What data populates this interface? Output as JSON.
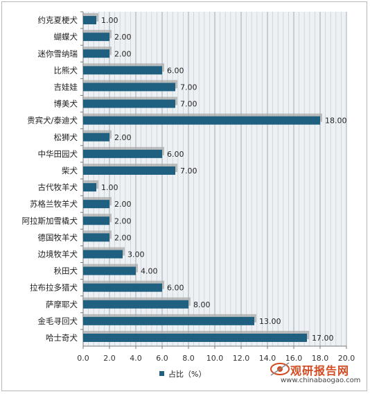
{
  "chart_data": {
    "type": "bar",
    "orientation": "horizontal",
    "categories": [
      "约克夏梗犬",
      "蝴蝶犬",
      "迷你雪纳瑞",
      "比熊犬",
      "吉娃娃",
      "博美犬",
      "贵宾犬/泰迪犬",
      "松狮犬",
      "中华田园犬",
      "柴犬",
      "古代牧羊犬",
      "苏格兰牧羊犬",
      "阿拉斯加雪橇犬",
      "德国牧羊犬",
      "边境牧羊犬",
      "秋田犬",
      "拉布拉多猎犬",
      "萨摩耶犬",
      "金毛寻回犬",
      "哈士奇犬"
    ],
    "series": [
      {
        "name": "占比（%）",
        "values": [
          1.0,
          2.0,
          2.0,
          6.0,
          7.0,
          7.0,
          18.0,
          2.0,
          6.0,
          7.0,
          1.0,
          2.0,
          2.0,
          2.0,
          3.0,
          4.0,
          6.0,
          8.0,
          13.0,
          17.0
        ],
        "labels": [
          "1.00",
          "2.00",
          "2.00",
          "6.00",
          "7.00",
          "7.00",
          "18.00",
          "2.00",
          "6.00",
          "7.00",
          "1.00",
          "2.00",
          "2.00",
          "2.00",
          "3.00",
          "4.00",
          "6.00",
          "8.00",
          "13.00",
          "17.00"
        ]
      }
    ],
    "xlim": [
      0,
      20
    ],
    "xticks": [
      "0.0",
      "2.0",
      "4.0",
      "6.0",
      "8.0",
      "10.0",
      "12.0",
      "14.0",
      "16.0",
      "18.0",
      "20.0"
    ],
    "grid": "vertical dashed",
    "legend": "bottom-center",
    "bar_color": "#1f5f7f",
    "title": "",
    "xlabel": "",
    "ylabel": ""
  },
  "watermark": {
    "name": "观研报告网",
    "url": "www.chinabaogao.com"
  }
}
